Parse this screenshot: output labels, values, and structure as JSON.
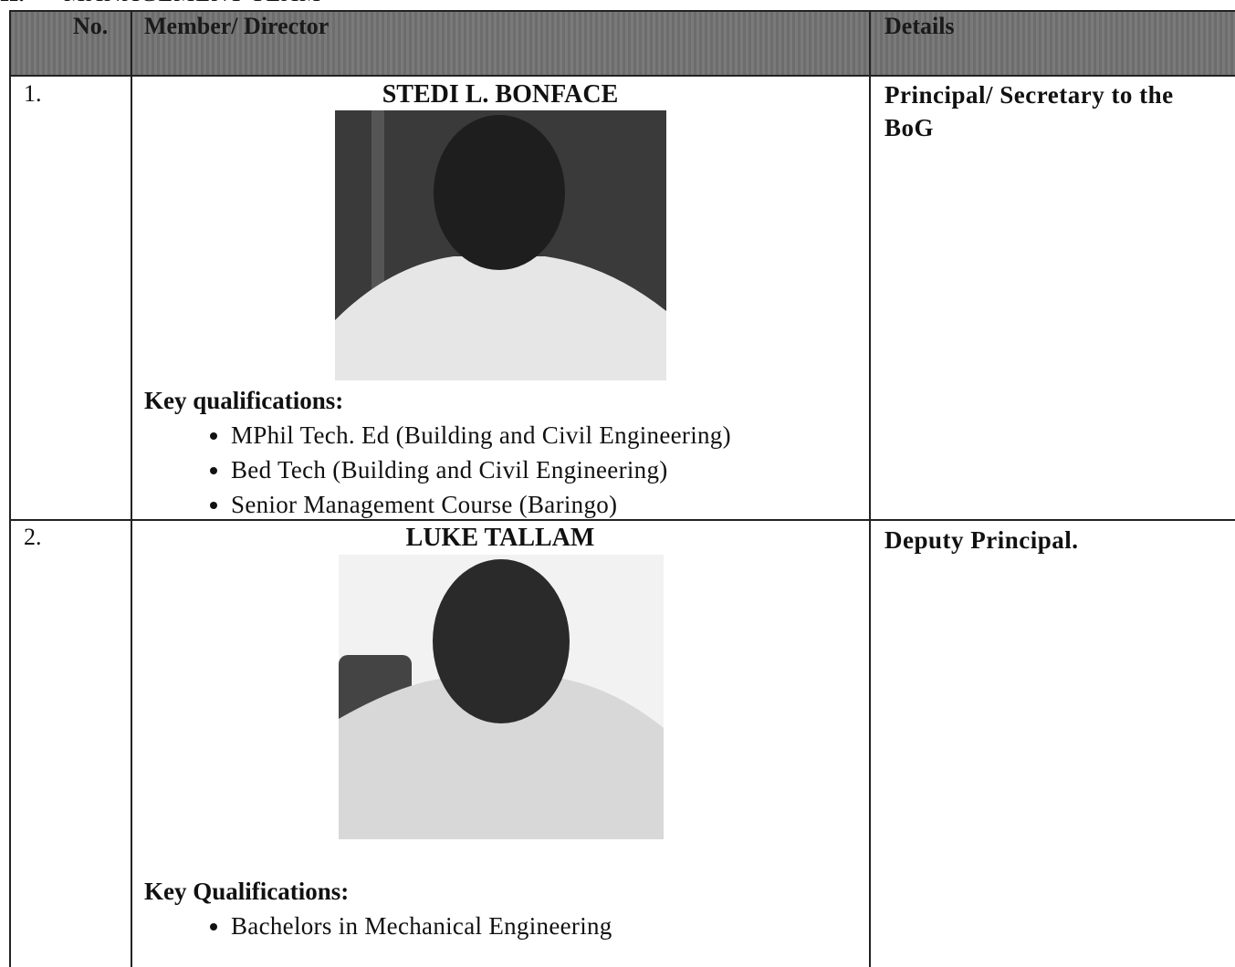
{
  "header": {
    "section_number": "II.",
    "section_title": "MANAGEMENT TEAM"
  },
  "table": {
    "columns": [
      "No.",
      "Member/ Director",
      "Details"
    ],
    "rows": [
      {
        "number": "1.",
        "name": "STEDI L. BONFACE",
        "qualifications_heading": "Key qualifications:",
        "qualifications": [
          "MPhil Tech. Ed (Building and Civil Engineering)",
          "Bed Tech (Building and Civil Engineering)",
          "Senior Management Course (Baringo)"
        ],
        "details": "Principal/ Secretary to the BoG"
      },
      {
        "number": "2.",
        "name": "LUKE TALLAM",
        "qualifications_heading": "Key Qualifications:",
        "qualifications": [
          "Bachelors in Mechanical Engineering"
        ],
        "details": "Deputy Principal."
      }
    ]
  }
}
